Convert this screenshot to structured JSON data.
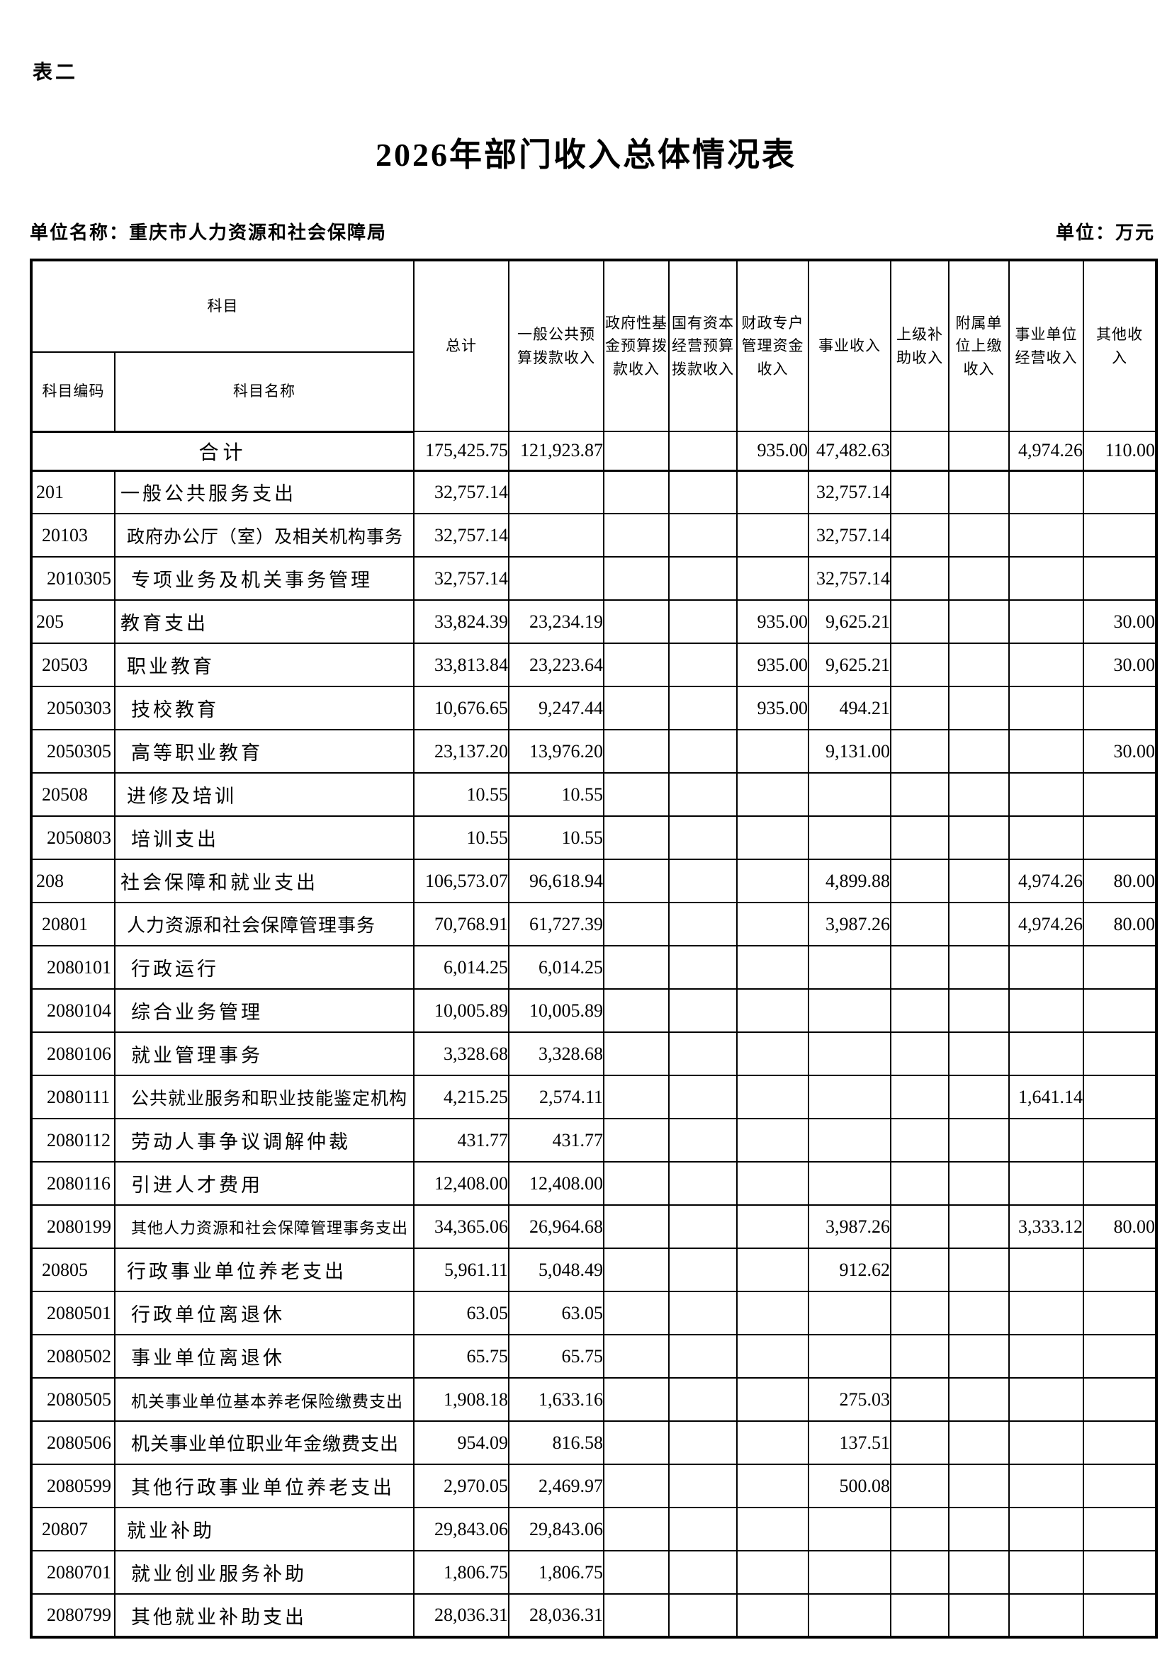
{
  "page": {
    "tag": "表二",
    "title": "2026年部门收入总体情况表",
    "unit_name": "单位名称：重庆市人力资源和社会保障局",
    "unit": "单位：万元"
  },
  "table": {
    "header": {
      "subject_group": "科目",
      "code": "科目编码",
      "name": "科目名称",
      "columns": [
        "总计",
        "一般公共预\n算拨款收入",
        "政府性基\n金预算拨\n款收入",
        "国有资本\n经营预算\n拨款收入",
        "财政专户\n管理资金\n收入",
        "事业收入",
        "上级补\n助收入",
        "附属单\n位上缴\n收入",
        "事业单位\n经营收入",
        "其他收\n入"
      ]
    },
    "total_row": {
      "label": "合计",
      "values": [
        "175,425.75",
        "121,923.87",
        "",
        "",
        "935.00",
        "47,482.63",
        "",
        "",
        "4,974.26",
        "110.00"
      ]
    },
    "rows": [
      {
        "code": "201",
        "name": "一般公共服务支出",
        "level": 1,
        "values": [
          "32,757.14",
          "",
          "",
          "",
          "",
          "32,757.14",
          "",
          "",
          "",
          ""
        ]
      },
      {
        "code": "20103",
        "name": "政府办公厅（室）及相关机构事务",
        "level": 2,
        "values": [
          "32,757.14",
          "",
          "",
          "",
          "",
          "32,757.14",
          "",
          "",
          "",
          ""
        ]
      },
      {
        "code": "2010305",
        "name": "专项业务及机关事务管理",
        "level": 3,
        "values": [
          "32,757.14",
          "",
          "",
          "",
          "",
          "32,757.14",
          "",
          "",
          "",
          ""
        ]
      },
      {
        "code": "205",
        "name": "教育支出",
        "level": 1,
        "values": [
          "33,824.39",
          "23,234.19",
          "",
          "",
          "935.00",
          "9,625.21",
          "",
          "",
          "",
          "30.00"
        ]
      },
      {
        "code": "20503",
        "name": "职业教育",
        "level": 2,
        "values": [
          "33,813.84",
          "23,223.64",
          "",
          "",
          "935.00",
          "9,625.21",
          "",
          "",
          "",
          "30.00"
        ]
      },
      {
        "code": "2050303",
        "name": "技校教育",
        "level": 3,
        "values": [
          "10,676.65",
          "9,247.44",
          "",
          "",
          "935.00",
          "494.21",
          "",
          "",
          "",
          ""
        ]
      },
      {
        "code": "2050305",
        "name": "高等职业教育",
        "level": 3,
        "values": [
          "23,137.20",
          "13,976.20",
          "",
          "",
          "",
          "9,131.00",
          "",
          "",
          "",
          "30.00"
        ]
      },
      {
        "code": "20508",
        "name": "进修及培训",
        "level": 2,
        "values": [
          "10.55",
          "10.55",
          "",
          "",
          "",
          "",
          "",
          "",
          "",
          ""
        ]
      },
      {
        "code": "2050803",
        "name": "培训支出",
        "level": 3,
        "values": [
          "10.55",
          "10.55",
          "",
          "",
          "",
          "",
          "",
          "",
          "",
          ""
        ]
      },
      {
        "code": "208",
        "name": "社会保障和就业支出",
        "level": 1,
        "values": [
          "106,573.07",
          "96,618.94",
          "",
          "",
          "",
          "4,899.88",
          "",
          "",
          "4,974.26",
          "80.00"
        ]
      },
      {
        "code": "20801",
        "name": "人力资源和社会保障管理事务",
        "level": 2,
        "values": [
          "70,768.91",
          "61,727.39",
          "",
          "",
          "",
          "3,987.26",
          "",
          "",
          "4,974.26",
          "80.00"
        ]
      },
      {
        "code": "2080101",
        "name": "行政运行",
        "level": 3,
        "values": [
          "6,014.25",
          "6,014.25",
          "",
          "",
          "",
          "",
          "",
          "",
          "",
          ""
        ]
      },
      {
        "code": "2080104",
        "name": "综合业务管理",
        "level": 3,
        "values": [
          "10,005.89",
          "10,005.89",
          "",
          "",
          "",
          "",
          "",
          "",
          "",
          ""
        ]
      },
      {
        "code": "2080106",
        "name": "就业管理事务",
        "level": 3,
        "values": [
          "3,328.68",
          "3,328.68",
          "",
          "",
          "",
          "",
          "",
          "",
          "",
          ""
        ]
      },
      {
        "code": "2080111",
        "name": "公共就业服务和职业技能鉴定机构",
        "level": 3,
        "values": [
          "4,215.25",
          "2,574.11",
          "",
          "",
          "",
          "",
          "",
          "",
          "1,641.14",
          ""
        ]
      },
      {
        "code": "2080112",
        "name": "劳动人事争议调解仲裁",
        "level": 3,
        "values": [
          "431.77",
          "431.77",
          "",
          "",
          "",
          "",
          "",
          "",
          "",
          ""
        ]
      },
      {
        "code": "2080116",
        "name": "引进人才费用",
        "level": 3,
        "values": [
          "12,408.00",
          "12,408.00",
          "",
          "",
          "",
          "",
          "",
          "",
          "",
          ""
        ]
      },
      {
        "code": "2080199",
        "name": "其他人力资源和社会保障管理事务支出",
        "level": 3,
        "values": [
          "34,365.06",
          "26,964.68",
          "",
          "",
          "",
          "3,987.26",
          "",
          "",
          "3,333.12",
          "80.00"
        ]
      },
      {
        "code": "20805",
        "name": "行政事业单位养老支出",
        "level": 2,
        "values": [
          "5,961.11",
          "5,048.49",
          "",
          "",
          "",
          "912.62",
          "",
          "",
          "",
          ""
        ]
      },
      {
        "code": "2080501",
        "name": "行政单位离退休",
        "level": 3,
        "values": [
          "63.05",
          "63.05",
          "",
          "",
          "",
          "",
          "",
          "",
          "",
          ""
        ]
      },
      {
        "code": "2080502",
        "name": "事业单位离退休",
        "level": 3,
        "values": [
          "65.75",
          "65.75",
          "",
          "",
          "",
          "",
          "",
          "",
          "",
          ""
        ]
      },
      {
        "code": "2080505",
        "name": "机关事业单位基本养老保险缴费支出",
        "level": 3,
        "values": [
          "1,908.18",
          "1,633.16",
          "",
          "",
          "",
          "275.03",
          "",
          "",
          "",
          ""
        ]
      },
      {
        "code": "2080506",
        "name": "机关事业单位职业年金缴费支出",
        "level": 3,
        "values": [
          "954.09",
          "816.58",
          "",
          "",
          "",
          "137.51",
          "",
          "",
          "",
          ""
        ]
      },
      {
        "code": "2080599",
        "name": "其他行政事业单位养老支出",
        "level": 3,
        "values": [
          "2,970.05",
          "2,469.97",
          "",
          "",
          "",
          "500.08",
          "",
          "",
          "",
          ""
        ]
      },
      {
        "code": "20807",
        "name": "就业补助",
        "level": 2,
        "values": [
          "29,843.06",
          "29,843.06",
          "",
          "",
          "",
          "",
          "",
          "",
          "",
          ""
        ]
      },
      {
        "code": "2080701",
        "name": "就业创业服务补助",
        "level": 3,
        "values": [
          "1,806.75",
          "1,806.75",
          "",
          "",
          "",
          "",
          "",
          "",
          "",
          ""
        ]
      },
      {
        "code": "2080799",
        "name": "其他就业补助支出",
        "level": 3,
        "values": [
          "28,036.31",
          "28,036.31",
          "",
          "",
          "",
          "",
          "",
          "",
          "",
          ""
        ]
      }
    ]
  }
}
